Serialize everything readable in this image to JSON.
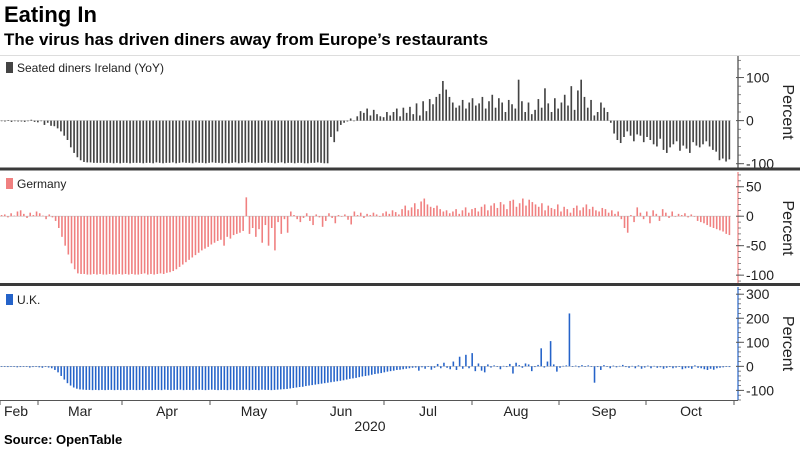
{
  "title": "Eating In",
  "subtitle": "The virus has driven diners away from Europe’s restaurants",
  "source": "Source: OpenTable",
  "colors": {
    "ireland": "#444444",
    "germany": "#f08080",
    "uk": "#2563c9",
    "divider": "#3a3a3a",
    "axis": "#555555"
  },
  "chart_data": [
    {
      "type": "bar",
      "series": [
        {
          "name": "Seated diners Ireland (YoY)",
          "values": [
            -1,
            -2,
            1,
            -3,
            0,
            -2,
            -2,
            -3,
            -1,
            2,
            -3,
            -4,
            -1,
            -10,
            -5,
            -12,
            -13,
            -18,
            -25,
            -35,
            -45,
            -62,
            -75,
            -85,
            -92,
            -96,
            -97,
            -97,
            -98,
            -98,
            -98,
            -98,
            -98,
            -98,
            -99,
            -98,
            -99,
            -98,
            -98,
            -99,
            -98,
            -98,
            -98,
            -99,
            -98,
            -98,
            -99,
            -97,
            -98,
            -99,
            -98,
            -98,
            -97,
            -99,
            -98,
            -97,
            -98,
            -98,
            -99,
            -97,
            -98,
            -98,
            -99,
            -98,
            -97,
            -98,
            -98,
            -99,
            -98,
            -99,
            -98,
            -97,
            -99,
            -98,
            -98,
            -97,
            -98,
            -99,
            -98,
            -98,
            -97,
            -98,
            -98,
            -99,
            -98,
            -97,
            -99,
            -98,
            -98,
            -99,
            -98,
            -98,
            -99,
            -99,
            -98,
            -98,
            -97,
            -98,
            -99,
            -99,
            -38,
            -50,
            -25,
            -10,
            -5,
            -2,
            5,
            0,
            10,
            22,
            18,
            28,
            12,
            25,
            15,
            10,
            8,
            20,
            12,
            20,
            28,
            10,
            30,
            18,
            32,
            15,
            40,
            12,
            45,
            22,
            50,
            38,
            55,
            62,
            92,
            72,
            55,
            42,
            30,
            35,
            48,
            28,
            42,
            52,
            35,
            40,
            55,
            28,
            45,
            60,
            30,
            52,
            42,
            20,
            48,
            38,
            28,
            95,
            45,
            20,
            42,
            15,
            25,
            50,
            30,
            75,
            40,
            20,
            52,
            28,
            42,
            60,
            35,
            80,
            25,
            70,
            95,
            55,
            30,
            48,
            12,
            20,
            42,
            30,
            20,
            -5,
            -30,
            -45,
            -52,
            -38,
            -25,
            -35,
            -48,
            -32,
            -35,
            -50,
            -38,
            -45,
            -55,
            -60,
            -42,
            -68,
            -75,
            -62,
            -55,
            -48,
            -70,
            -58,
            -65,
            -75,
            -50,
            -58,
            -62,
            -55,
            -48,
            -60,
            -68,
            -72,
            -92,
            -88,
            -95,
            -90
          ]
        }
      ],
      "ylim": [
        -110,
        150
      ],
      "yticks": [
        100,
        0,
        -100
      ],
      "ylabel": "Percent"
    },
    {
      "type": "bar",
      "series": [
        {
          "name": "Germany",
          "values": [
            2,
            3,
            -2,
            5,
            1,
            8,
            10,
            4,
            -3,
            6,
            2,
            8,
            5,
            1,
            -5,
            3,
            -2,
            -8,
            -20,
            -35,
            -50,
            -65,
            -80,
            -90,
            -97,
            -98,
            -98,
            -99,
            -99,
            -98,
            -99,
            -98,
            -99,
            -99,
            -98,
            -99,
            -99,
            -98,
            -99,
            -98,
            -99,
            -98,
            -99,
            -99,
            -98,
            -97,
            -99,
            -98,
            -99,
            -98,
            -97,
            -98,
            -96,
            -95,
            -93,
            -90,
            -86,
            -82,
            -78,
            -74,
            -70,
            -66,
            -62,
            -58,
            -55,
            -52,
            -48,
            -45,
            -42,
            -40,
            -50,
            -35,
            -38,
            -32,
            -30,
            -28,
            -25,
            32,
            -30,
            -20,
            -35,
            -22,
            -45,
            -15,
            -50,
            -20,
            -58,
            -10,
            -30,
            -5,
            -28,
            8,
            2,
            -5,
            -10,
            -3,
            5,
            -8,
            -15,
            3,
            -2,
            -18,
            -8,
            5,
            -3,
            -12,
            2,
            -1,
            3,
            -6,
            -14,
            8,
            2,
            6,
            -3,
            4,
            2,
            6,
            3,
            -1,
            5,
            8,
            4,
            10,
            7,
            3,
            12,
            18,
            10,
            15,
            22,
            12,
            25,
            30,
            20,
            16,
            14,
            18,
            12,
            8,
            10,
            5,
            8,
            12,
            4,
            10,
            15,
            6,
            12,
            14,
            8,
            16,
            20,
            10,
            18,
            22,
            14,
            24,
            20,
            12,
            26,
            28,
            16,
            22,
            30,
            18,
            28,
            24,
            20,
            16,
            22,
            10,
            18,
            14,
            12,
            20,
            8,
            16,
            12,
            6,
            14,
            18,
            10,
            15,
            20,
            12,
            16,
            10,
            8,
            14,
            12,
            6,
            10,
            4,
            8,
            -5,
            -20,
            -28,
            2,
            -10,
            15,
            6,
            -5,
            8,
            -12,
            10,
            4,
            -8,
            12,
            6,
            -3,
            8,
            0,
            4,
            2,
            5,
            -2,
            3,
            -1,
            -8,
            -10,
            -12,
            -15,
            -18,
            -20,
            -22,
            -24,
            -26,
            -30,
            -32
          ]
        }
      ],
      "ylim": [
        -115,
        75
      ],
      "yticks": [
        50,
        0,
        -50,
        -100
      ],
      "ylabel": "Percent"
    },
    {
      "type": "bar",
      "series": [
        {
          "name": "U.K.",
          "values": [
            -2,
            -1,
            -3,
            -2,
            0,
            -4,
            -3,
            -1,
            -2,
            -5,
            -3,
            -2,
            -4,
            -6,
            -2,
            -5,
            -8,
            -15,
            -25,
            -40,
            -55,
            -70,
            -80,
            -88,
            -93,
            -96,
            -97,
            -98,
            -98,
            -99,
            -98,
            -99,
            -98,
            -99,
            -98,
            -98,
            -99,
            -98,
            -99,
            -98,
            -99,
            -98,
            -98,
            -99,
            -98,
            -99,
            -98,
            -98,
            -99,
            -98,
            -98,
            -99,
            -97,
            -98,
            -99,
            -98,
            -98,
            -97,
            -99,
            -98,
            -98,
            -99,
            -98,
            -97,
            -98,
            -99,
            -98,
            -97,
            -98,
            -99,
            -98,
            -98,
            -99,
            -97,
            -98,
            -99,
            -98,
            -98,
            -97,
            -99,
            -98,
            -98,
            -99,
            -97,
            -98,
            -98,
            -99,
            -98,
            -97,
            -96,
            -95,
            -94,
            -92,
            -90,
            -88,
            -86,
            -85,
            -82,
            -80,
            -78,
            -76,
            -74,
            -72,
            -70,
            -68,
            -66,
            -64,
            -62,
            -60,
            -58,
            -55,
            -52,
            -50,
            -48,
            -45,
            -42,
            -40,
            -38,
            -35,
            -32,
            -30,
            -28,
            -25,
            -22,
            -20,
            -18,
            -15,
            -14,
            -12,
            -10,
            -8,
            -6,
            -5,
            -18,
            -4,
            -10,
            -2,
            -14,
            -6,
            10,
            -8,
            15,
            -6,
            -12,
            20,
            -15,
            40,
            -10,
            48,
            -8,
            55,
            -20,
            12,
            -18,
            -25,
            8,
            -5,
            4,
            0,
            -12,
            2,
            -3,
            10,
            -30,
            15,
            5,
            -6,
            12,
            8,
            -20,
            -3,
            6,
            75,
            -5,
            20,
            105,
            8,
            -22,
            -6,
            2,
            4,
            220,
            -2,
            3,
            -4,
            5,
            -1,
            4,
            -2,
            -68,
            -3,
            -15,
            5,
            -2,
            -8,
            3,
            -4,
            2,
            6,
            -3,
            -6,
            2,
            -8,
            4,
            -10,
            -5,
            3,
            -8,
            2,
            -6,
            -4,
            -10,
            -6,
            -3,
            -8,
            -5,
            -2,
            -12,
            -8,
            -6,
            -10,
            4,
            -6,
            -8,
            -12,
            -15,
            -10,
            -14,
            -8,
            -6,
            -4,
            -2,
            -3
          ]
        }
      ],
      "ylim": [
        -140,
        330
      ],
      "yticks": [
        300,
        200,
        100,
        0,
        -100
      ],
      "ylabel": "Percent"
    }
  ],
  "x_axis": {
    "months": [
      "Feb",
      "Mar",
      "Apr",
      "May",
      "Jun",
      "Jul",
      "Aug",
      "Sep",
      "Oct"
    ],
    "year": "2020"
  }
}
